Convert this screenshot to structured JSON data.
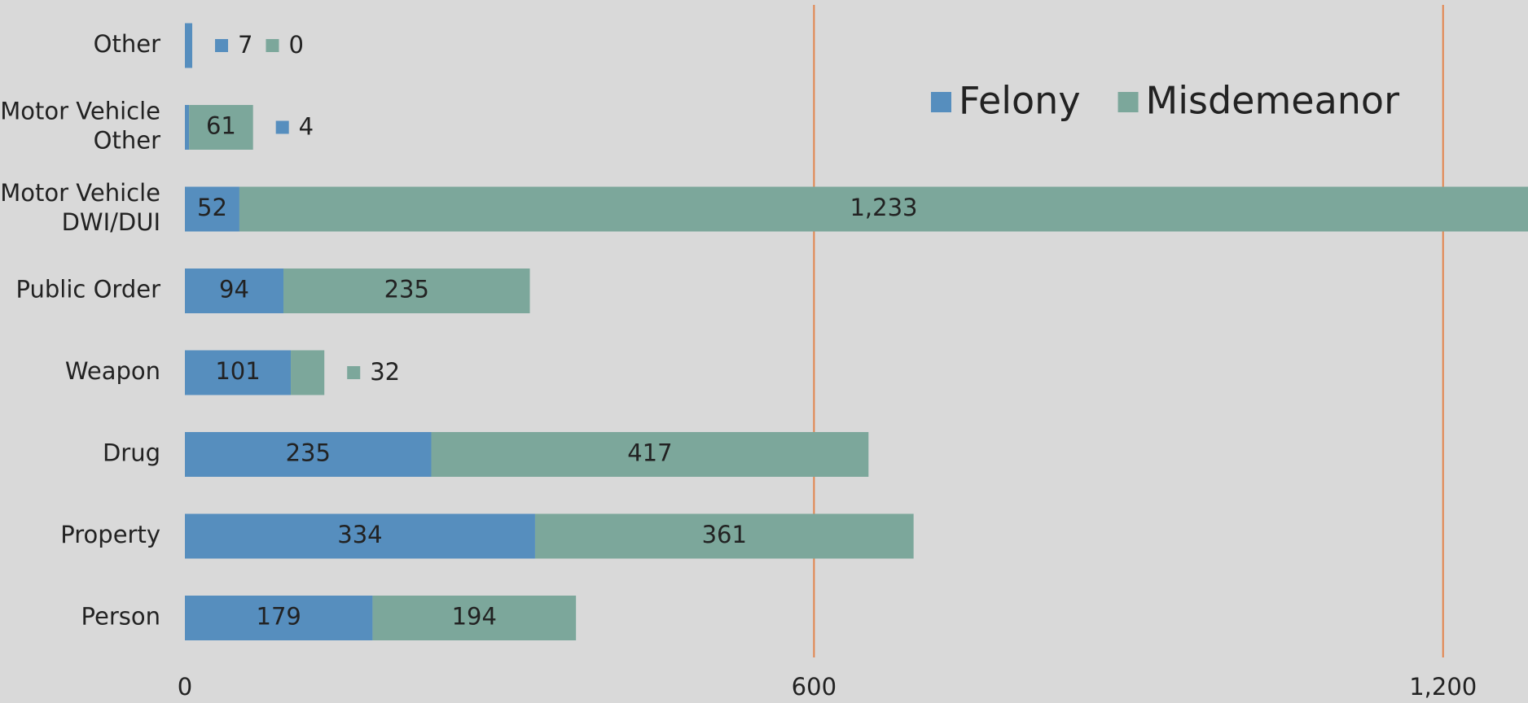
{
  "chart_data": {
    "type": "stacked-barh",
    "categories": [
      "Person",
      "Property",
      "Drug",
      "Weapon",
      "Public Order",
      "Motor Vehicle DWI/DUI",
      "Motor Vehicle Other",
      "Other"
    ],
    "series": [
      {
        "name": "Felony",
        "color": "#568ebe",
        "values": [
          179,
          334,
          235,
          101,
          94,
          52,
          4,
          7
        ]
      },
      {
        "name": "Misdemeanor",
        "color": "#7ca79b",
        "values": [
          194,
          361,
          417,
          32,
          235,
          1233,
          61,
          0
        ]
      }
    ],
    "value_labels": [
      [
        "179",
        "334",
        "235",
        "101",
        "94",
        "52",
        "4",
        "7"
      ],
      [
        "194",
        "361",
        "417",
        "32",
        "235",
        "1,233",
        "61",
        "0"
      ]
    ],
    "xlim": [
      0,
      1281
    ],
    "xticks": [
      0,
      600,
      {
        "value": 1200,
        "label": "1,200"
      }
    ],
    "grid": true,
    "grid_color": "#e2844c",
    "legend": "top-right"
  }
}
